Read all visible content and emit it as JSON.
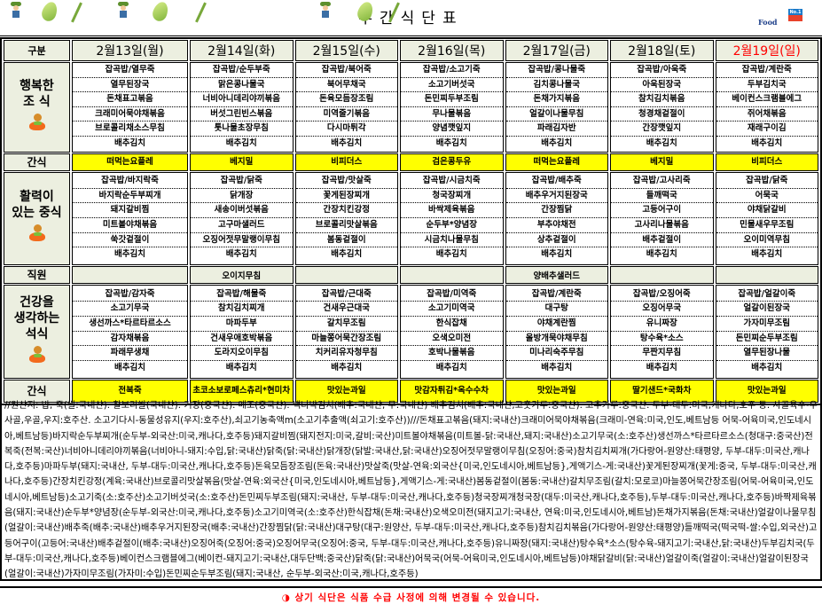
{
  "header": {
    "title": "주간식단표",
    "logo_text": "Food",
    "logo_badge": "No.1"
  },
  "table": {
    "corner_label": "구분",
    "days": [
      "2월13일(월)",
      "2월14일(화)",
      "2월15일(수)",
      "2월16일(목)",
      "2월17일(금)",
      "2월18일(토)",
      "2월19일(일)"
    ],
    "sunday_color": "#ff0000",
    "snack_color": "#ffff00",
    "label_bg": "#ecefe0",
    "sections": [
      {
        "type": "meal",
        "label": "행복한\n조 식",
        "icon": "mascot-icon",
        "items": [
          [
            "잡곡밥/열무죽",
            "열무된장국",
            "돈채표고볶음",
            "크래미어묵야채볶음",
            "브로콜리채소스무침",
            "배추김치"
          ],
          [
            "잡곡밥/순두부죽",
            "맑은콩나물국",
            "너비아니데리야끼볶음",
            "버섯그린빈스볶음",
            "톳나물초장무침",
            "배추김치"
          ],
          [
            "잡곡밥/북어죽",
            "북어무채국",
            "돈육모듬장조림",
            "미역줄기볶음",
            "다시마튀각",
            "배추김치"
          ],
          [
            "잡곡밥/소고기죽",
            "소고기버섯국",
            "돈민찌두부조림",
            "무나물볶음",
            "양념깻잎지",
            "배추김치"
          ],
          [
            "잡곡밥/콩나물죽",
            "김치콩나물국",
            "돈채가지볶음",
            "얼갈이나물무침",
            "파래김자반",
            "배추김치"
          ],
          [
            "잡곡밥/아욱죽",
            "아욱된장국",
            "참치김치볶음",
            "청경채겉절이",
            "간장깻잎지",
            "배추김치"
          ],
          [
            "잡곡밥/계란죽",
            "두부김치국",
            "베이컨스크램블에그",
            "쥐어채볶음",
            "재래구이김",
            "배추김치"
          ]
        ]
      },
      {
        "type": "snack",
        "label": "간식",
        "items": [
          "떠먹는요플레",
          "베지밀",
          "비피더스",
          "검은콩두유",
          "떠먹는요플레",
          "베지밀",
          "비피더스"
        ]
      },
      {
        "type": "meal",
        "label": "활력이\n있는 중식",
        "icon": "mascot-icon",
        "items": [
          [
            "잡곡밥/바지락죽",
            "바지락순두부찌개",
            "돼지갈비찜",
            "미트볼야채볶음",
            "쑥갓겉절이",
            "배추김치"
          ],
          [
            "잡곡밥/닭죽",
            "닭개장",
            "새송이버섯볶음",
            "고구마샐러드",
            "오징어젓무말랭이무침",
            "배추김치"
          ],
          [
            "잡곡밥/맛살죽",
            "꽃게된장찌개",
            "간장치킨강정",
            "브로콜리맛살볶음",
            "봄동겉절이",
            "배추김치"
          ],
          [
            "잡곡밥/시금치죽",
            "청국장찌개",
            "바싹제육볶음",
            "순두부*양념장",
            "시금치나물무침",
            "배추김치"
          ],
          [
            "잡곡밥/배추죽",
            "배추우거지된장국",
            "간장찜닭",
            "부추야채전",
            "상추겉절이",
            "배추김치"
          ],
          [
            "잡곡밥/고사리죽",
            "들깨떡국",
            "고등어구이",
            "고사리나물볶음",
            "배추겉절이",
            "배추김치"
          ],
          [
            "잡곡밥/닭죽",
            "어묵국",
            "야채닭갈비",
            "민물새우무조림",
            "오이미역무침",
            "배추김치"
          ]
        ]
      },
      {
        "type": "staff",
        "label": "직원",
        "items": [
          "",
          "오이지무침",
          "",
          "",
          "양배추샐러드",
          "",
          ""
        ]
      },
      {
        "type": "meal",
        "label": "건강을\n생각하는\n석식",
        "icon": "mascot-icon",
        "items": [
          [
            "잡곡밥/감자죽",
            "소고기무국",
            "생선까스*타르타르소스",
            "감자채볶음",
            "파래무생채",
            "배추김치"
          ],
          [
            "잡곡밥/해물죽",
            "참치김치찌개",
            "마파두부",
            "건새우애호박볶음",
            "도라지오이무침",
            "배추김치"
          ],
          [
            "잡곡밥/근대죽",
            "건새우근대국",
            "갈치무조림",
            "마늘쫑어묵간장조림",
            "치커리유자청무침",
            "배추김치"
          ],
          [
            "잡곡밥/미역죽",
            "소고기미역국",
            "한식잡채",
            "오색오미전",
            "호박나물볶음",
            "배추김치"
          ],
          [
            "잡곡밥/계란죽",
            "대구탕",
            "야채계란찜",
            "올방개묵야채무침",
            "미나리숙주무침",
            "배추김치"
          ],
          [
            "잡곡밥/오징어죽",
            "오징어무국",
            "유니짜장",
            "탕수육*소스",
            "무짠지무침",
            "배추김치"
          ],
          [
            "잡곡밥/얼갈이죽",
            "얼갈이된장국",
            "가자미무조림",
            "돈민찌순두부조림",
            "열무된장나물",
            "배추김치"
          ]
        ]
      },
      {
        "type": "snack",
        "label": "간식",
        "items": [
          "전복죽",
          "초코소보로페스츄리*현미차",
          "맛있는과일",
          "맛감자튀김*옥수수차",
          "맛있는과일",
          "딸기샌드*국화차",
          "맛있는과일"
        ]
      }
    ]
  },
  "origin_text": "//원산지: 밥, 죽(쌀:국내산). 찰보리쌀(국내산). 기장(중국산). 메조(중국산). 백나박김치(배추:국내산, 무:국내산) 배추김치(배추:국내산,고춧가루:중국산). 고추가루:중국산. 두부-대두:미국,캐나다,호주 등. 사골육수-우사골,우골,우지:호주산. 소고기다시-동물성유지(우지:호주산),쇠고기농축액m(소고기추출액(쇠고기:호주산))///돈채표고볶음(돼지:국내산)크래미어묵야채볶음(크래미-연육:미국,인도,베트남등 어묵-어육미국,인도네시아,베트남등)바지락순두부찌개(순두부-외국산:미국,캐나다,호주등)돼지갈비찜(돼지전지:미국,갈비:국산)미트볼야채볶음(미트볼-닭:국내산,돼지:국내산)소고기무국(소:호주산)생선까스*타르타르소스(청대구:중국산)전복죽(전복:국산)너비아니데리야끼볶음(너비아니-돼지:수입,닭:국내산)닭죽(닭:국내산)닭개장(닭발:국내산,닭:국내산)오징어젓무말랭이무침(오징어:중국)참치김치찌개(가다랑어-원양산:태평양, 두부-대두:미국산,캐나다,호주등)마파두부(돼지:국내산, 두부-대두:미국산,캐나다,호주등)돈육모듬장조림(돈육:국내산)맛살죽(맛살-연육:외국산{미국,인도네시아,베트남등},게액기스-게:국내산)꽃게된장찌개(꽃게:중국, 두부-대두:미국산,캐나다,호주등)간장치킨강정(계육:국내산)브로콜리맛살볶음(맛살-연육:외국산{미국,인도네시아,베트남등},게액기스-게:국내산)봄동겉절이(봄동:국내산)갈치무조림(갈치:모로코)마늘쫑어묵간장조림(어묵-어육미국,인도네시아,베트남등)소고기죽(소:호주산)소고기버섯국(소:호주산)돈민찌두부조림(돼지:국내산, 두부-대두:미국산,캐나다,호주등)청국장찌개청국장(대두:미국산,캐나다,호주등),두부-대두:미국산,캐나다,호주등)바짝제육볶음(돼지:국내산)순두부*양념장(순두부-외국산:미국,캐나다,호주등)소고기미역국(소:호주산)한식잡채(돈채:국내산)오색오미전(돼지고기:국내산, 연육:미국,인도네시아,베트남)돈채가지볶음(돈채:국내산)얼갈이나물무침(얼갈이:국내산)배추죽(배추:국내산)배추우거지된장국(배추:국내산)간장찜닭(닭:국내산)대구탕(대구:원양산, 두부-대두:미국산,캐나다,호주등)참치김치볶음(가다랑어-원양산:태평양)들깨떡국(떡국떡-쌀:수입,외국산)고등어구이(고등어:국내산)배추겉절이(배추:국내산)오징어죽(오징어:중국)오징어무국(오징어:중국, 두부-대두:미국산,캐나다,호주등)유니짜장(돼지:국내산)탕수육*소스(탕수육-돼지고기:국내산,닭:국내산)두부김치국(두부-대두:미국산,캐나다,호주등)베이컨스크램블에그(베이컨-돼지고기:국내산,대두단백:중국산)닭죽(닭:국내산)어묵국(어묵-어육미국,인도네시아,베트남등)야채닭갈비(닭:국내산)얼갈이죽(얼갈이:국내산)얼갈이된장국(얼갈이:국내산)가자미무조림(가자미:수입)돈민찌순두부조림(돼지:국내산, 순두부-외국산:미국,캐나다,호주등)",
  "notice": {
    "icon": "half-circle-bullet-icon",
    "text": "◑ 상기 식단은 식품 수급 사정에 의해 변경될 수 있습니다."
  }
}
